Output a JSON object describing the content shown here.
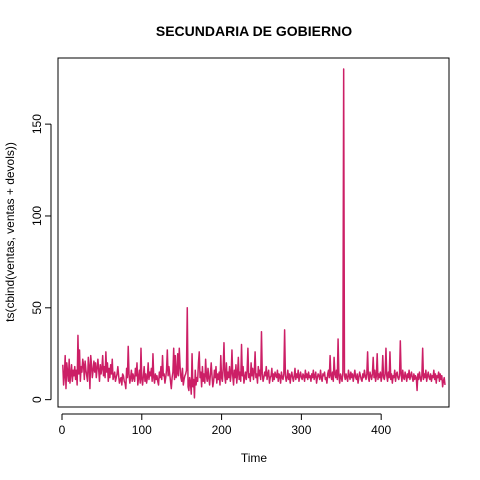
{
  "chart_data": {
    "type": "line",
    "title": "SECUNDARIA DE GOBIERNO",
    "xlabel": "Time",
    "ylabel": "ts(cbind(ventas, ventas + devols))",
    "xlim": [
      -5,
      485
    ],
    "ylim": [
      -4,
      186
    ],
    "x_ticks": [
      0,
      100,
      200,
      300,
      400
    ],
    "y_ticks": [
      0,
      50,
      100,
      150
    ],
    "grid": false,
    "legend": "none",
    "series": [
      {
        "color": "#cc1f66",
        "x_start": 1,
        "x_step": 1,
        "values": [
          19,
          8,
          13,
          24,
          6,
          20,
          15,
          10,
          22,
          9,
          14,
          19,
          10,
          16,
          13,
          18,
          11,
          16,
          8,
          35,
          14,
          27,
          10,
          18,
          15,
          22,
          19,
          11,
          21,
          16,
          13,
          10,
          23,
          18,
          6,
          24,
          19,
          12,
          16,
          21,
          15,
          20,
          12,
          17,
          22,
          16,
          10,
          19,
          14,
          17,
          24,
          13,
          18,
          12,
          26,
          15,
          20,
          10,
          17,
          12,
          19,
          14,
          22,
          11,
          13,
          15,
          10,
          12,
          14,
          18,
          13,
          9,
          11,
          12,
          8,
          14,
          13,
          10,
          9,
          6,
          17,
          12,
          29,
          14,
          9,
          12,
          16,
          10,
          14,
          12,
          10,
          17,
          13,
          20,
          8,
          12,
          16,
          9,
          28,
          11,
          8,
          13,
          18,
          10,
          14,
          9,
          12,
          20,
          11,
          15,
          13,
          17,
          10,
          25,
          12,
          9,
          14,
          11,
          13,
          10,
          8,
          15,
          12,
          18,
          11,
          24,
          13,
          14,
          9,
          12,
          16,
          27,
          13,
          18,
          14,
          10,
          6,
          12,
          15,
          28,
          11,
          24,
          12,
          14,
          25,
          13,
          28,
          18,
          12,
          10,
          17,
          8,
          11,
          13,
          14,
          16,
          50,
          7,
          5,
          12,
          9,
          3,
          25,
          7,
          11,
          1,
          16,
          8,
          12,
          10,
          20,
          26,
          12,
          15,
          7,
          18,
          10,
          14,
          9,
          22,
          13,
          10,
          17,
          12,
          8,
          14,
          20,
          13,
          7,
          10,
          16,
          12,
          18,
          9,
          14,
          11,
          15,
          8,
          24,
          12,
          10,
          17,
          31,
          13,
          9,
          20,
          11,
          15,
          12,
          18,
          10,
          14,
          27,
          13,
          8,
          16,
          12,
          19,
          9,
          14,
          23,
          11,
          15,
          10,
          30,
          13,
          18,
          9,
          12,
          15,
          11,
          16,
          28,
          12,
          14,
          10,
          20,
          13,
          17,
          11,
          15,
          26,
          12,
          14,
          9,
          18,
          13,
          16,
          11,
          37,
          14,
          10,
          12,
          15,
          13,
          18,
          11,
          14,
          16,
          9,
          12,
          13,
          17,
          10,
          14,
          11,
          15,
          13,
          12,
          16,
          10,
          14,
          13,
          9,
          15,
          12,
          11,
          14,
          38,
          13,
          10,
          12,
          16,
          11,
          14,
          9,
          13,
          15,
          12,
          10,
          13,
          17,
          11,
          14,
          12,
          16,
          10,
          13,
          15,
          12,
          11,
          14,
          13,
          10,
          16,
          12,
          14,
          11,
          15,
          12,
          13,
          10,
          14,
          12,
          16,
          11,
          13,
          15,
          9,
          12,
          14,
          13,
          11,
          16,
          12,
          10,
          14,
          13,
          15,
          11,
          12,
          9,
          14,
          16,
          12,
          24,
          13,
          11,
          15,
          10,
          23,
          14,
          12,
          16,
          11,
          33,
          13,
          9,
          14,
          12,
          10,
          15,
          180,
          13,
          11,
          14,
          12,
          10,
          16,
          13,
          11,
          15,
          12,
          14,
          10,
          13,
          16,
          12,
          11,
          14,
          9,
          12,
          15,
          13,
          11,
          10,
          14,
          12,
          16,
          13,
          11,
          14,
          26,
          12,
          10,
          15,
          13,
          11,
          14,
          23,
          12,
          16,
          10,
          13,
          25,
          11,
          14,
          12,
          15,
          10,
          13,
          24,
          12,
          11,
          14,
          28,
          13,
          10,
          15,
          12,
          26,
          11,
          14,
          9,
          13,
          12,
          16,
          10,
          14,
          15,
          12,
          11,
          13,
          32,
          14,
          10,
          16,
          12,
          11,
          15,
          13,
          10,
          14,
          12,
          16,
          11,
          13,
          15,
          12,
          10,
          14,
          11,
          13,
          12,
          5,
          14,
          11,
          15,
          12,
          10,
          13,
          28,
          11,
          14,
          12,
          16,
          10,
          13,
          15,
          12,
          11,
          14,
          10,
          13,
          12,
          16,
          11,
          14,
          9,
          13,
          12,
          15,
          10,
          14,
          11,
          13,
          7,
          10,
          12,
          8
        ]
      }
    ]
  }
}
